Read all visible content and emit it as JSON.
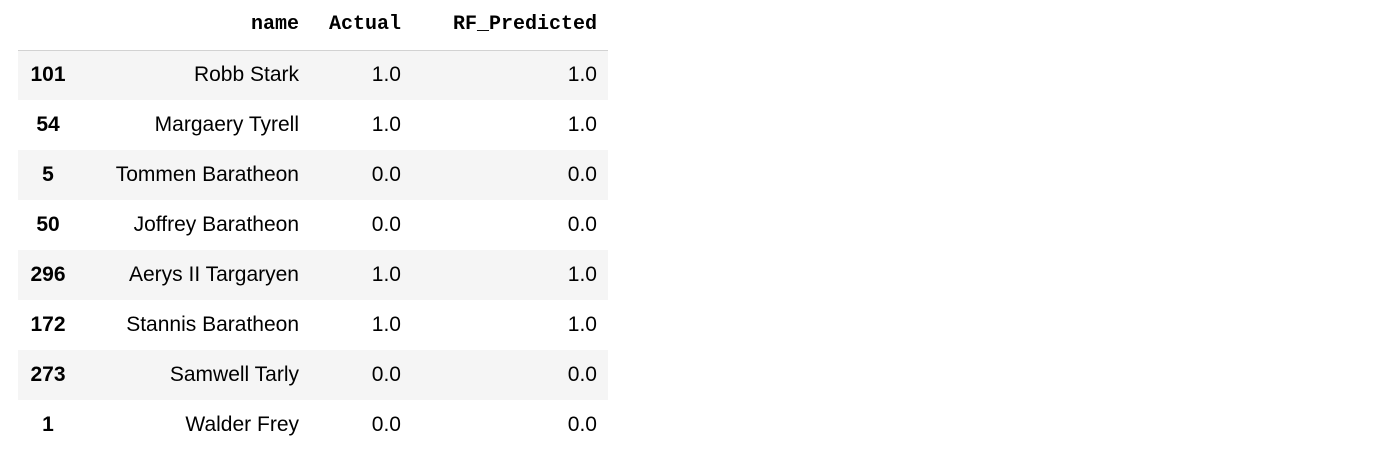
{
  "table": {
    "index_header": "",
    "columns": [
      "name",
      "Actual",
      "RF_Predicted"
    ],
    "rows": [
      {
        "index": "101",
        "name": "Robb Stark",
        "actual": "1.0",
        "rf_predicted": "1.0"
      },
      {
        "index": "54",
        "name": "Margaery Tyrell",
        "actual": "1.0",
        "rf_predicted": "1.0"
      },
      {
        "index": "5",
        "name": "Tommen Baratheon",
        "actual": "0.0",
        "rf_predicted": "0.0"
      },
      {
        "index": "50",
        "name": "Joffrey Baratheon",
        "actual": "0.0",
        "rf_predicted": "0.0"
      },
      {
        "index": "296",
        "name": "Aerys II Targaryen",
        "actual": "1.0",
        "rf_predicted": "1.0"
      },
      {
        "index": "172",
        "name": "Stannis Baratheon",
        "actual": "1.0",
        "rf_predicted": "1.0"
      },
      {
        "index": "273",
        "name": "Samwell Tarly",
        "actual": "0.0",
        "rf_predicted": "0.0"
      },
      {
        "index": "1",
        "name": "Walder Frey",
        "actual": "0.0",
        "rf_predicted": "0.0"
      }
    ]
  },
  "colors": {
    "row_stripe": "#f5f5f5",
    "header_rule": "#d2d2d2"
  }
}
